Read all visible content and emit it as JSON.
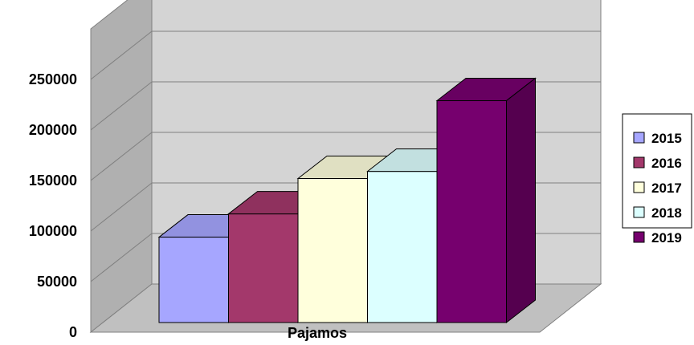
{
  "chart_data": {
    "type": "bar",
    "title": "",
    "xlabel": "Pajamos",
    "ylabel": "",
    "ylim": [
      0,
      300000
    ],
    "y_ticks": [
      0,
      50000,
      100000,
      150000,
      200000,
      250000
    ],
    "y_tick_labels": [
      "0",
      "50000",
      "100000",
      "150000",
      "200000",
      "250000"
    ],
    "grid": true,
    "three_d": true,
    "legend_position": "right",
    "categories": [
      "Pajamos"
    ],
    "series": [
      {
        "name": "2015",
        "values": [
          94000
        ],
        "color": "#A6A6FF"
      },
      {
        "name": "2016",
        "values": [
          117000
        ],
        "color": "#A3386B"
      },
      {
        "name": "2017",
        "values": [
          152000
        ],
        "color": "#FFFFDC"
      },
      {
        "name": "2018",
        "values": [
          159000
        ],
        "color": "#DCFFFF"
      },
      {
        "name": "2019",
        "values": [
          229000
        ],
        "color": "#76006E"
      }
    ]
  },
  "colors": {
    "wall": "#D4D4D4",
    "side_wall": "#B0B0B0",
    "floor": "#C0C0C0",
    "gridline": "#808080",
    "bar_outline": "#000000"
  }
}
